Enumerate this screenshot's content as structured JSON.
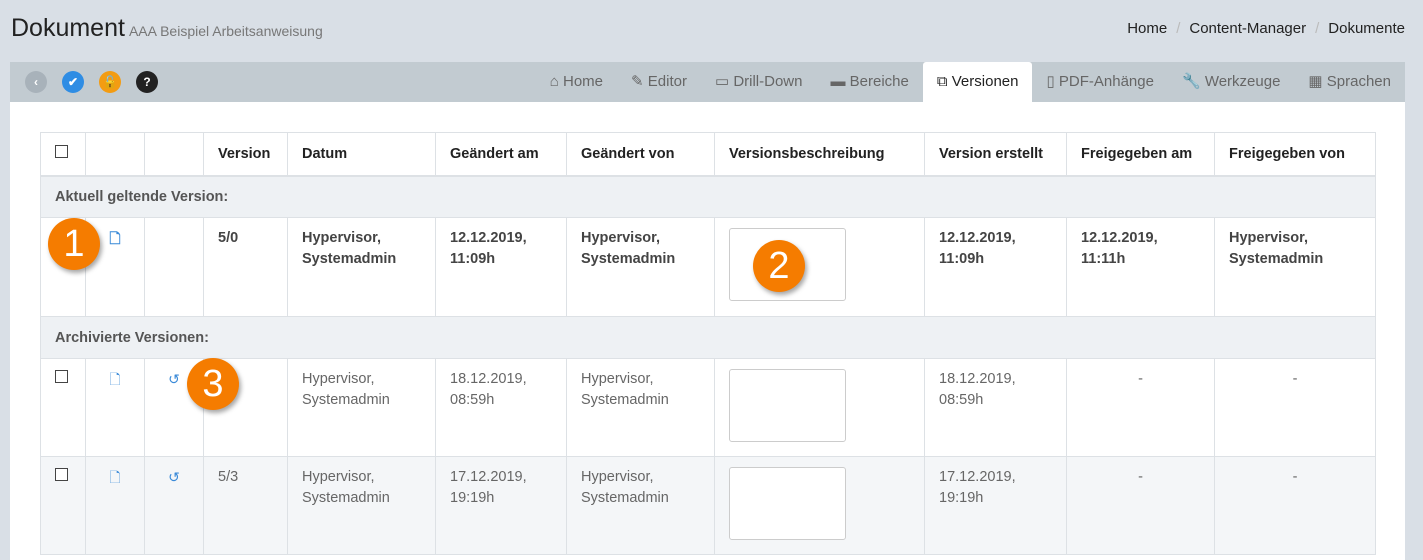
{
  "header": {
    "title": "Dokument",
    "subtitle": "AAA Beispiel Arbeitsanweisung"
  },
  "breadcrumb": [
    "Home",
    "Content-Manager",
    "Dokumente"
  ],
  "toolbar": {
    "buttons": [
      {
        "icon": "chevron-left-icon",
        "color": "#a8b2ba"
      },
      {
        "icon": "check-icon",
        "color": "#2f8de4"
      },
      {
        "icon": "unlock-icon",
        "color": "#f39c12"
      },
      {
        "icon": "question-icon",
        "color": "#222"
      }
    ]
  },
  "tabs": [
    {
      "label": "Home",
      "icon": "home-icon"
    },
    {
      "label": "Editor",
      "icon": "pencil-icon"
    },
    {
      "label": "Drill-Down",
      "icon": "folder-open-icon"
    },
    {
      "label": "Bereiche",
      "icon": "folder-icon"
    },
    {
      "label": "Versionen",
      "icon": "copy-icon",
      "active": true
    },
    {
      "label": "PDF-Anhänge",
      "icon": "pdf-icon"
    },
    {
      "label": "Werkzeuge",
      "icon": "wrench-icon"
    },
    {
      "label": "Sprachen",
      "icon": "language-icon"
    }
  ],
  "table": {
    "headers": [
      "",
      "",
      "",
      "Version",
      "Datum",
      "Geändert am",
      "Geändert von",
      "Versionsbeschreibung",
      "Version erstellt",
      "Freigegeben am",
      "Freigegeben von"
    ],
    "current_label": "Aktuell geltende Version:",
    "current": {
      "version": "5/0",
      "datum": "Hypervisor, Systemadmin",
      "geaendert_am": "12.12.2019, 11:09h",
      "geaendert_von": "Hypervisor, Systemadmin",
      "erstellt": "12.12.2019, 11:09h",
      "freigegeben_am": "12.12.2019, 11:11h",
      "freigegeben_von": "Hypervisor, Systemadmin"
    },
    "archived_label": "Archivierte Versionen:",
    "archived": [
      {
        "version": "",
        "datum": "Hypervisor, Systemadmin",
        "geaendert_am": "18.12.2019, 08:59h",
        "geaendert_von": "Hypervisor, Systemadmin",
        "erstellt": "18.12.2019, 08:59h",
        "freigegeben_am": "-",
        "freigegeben_von": "-"
      },
      {
        "version": "5/3",
        "datum": "Hypervisor, Systemadmin",
        "geaendert_am": "17.12.2019, 19:19h",
        "geaendert_von": "Hypervisor, Systemadmin",
        "erstellt": "17.12.2019, 19:19h",
        "freigegeben_am": "-",
        "freigegeben_von": "-"
      }
    ]
  },
  "markers": [
    "1",
    "2",
    "3"
  ]
}
